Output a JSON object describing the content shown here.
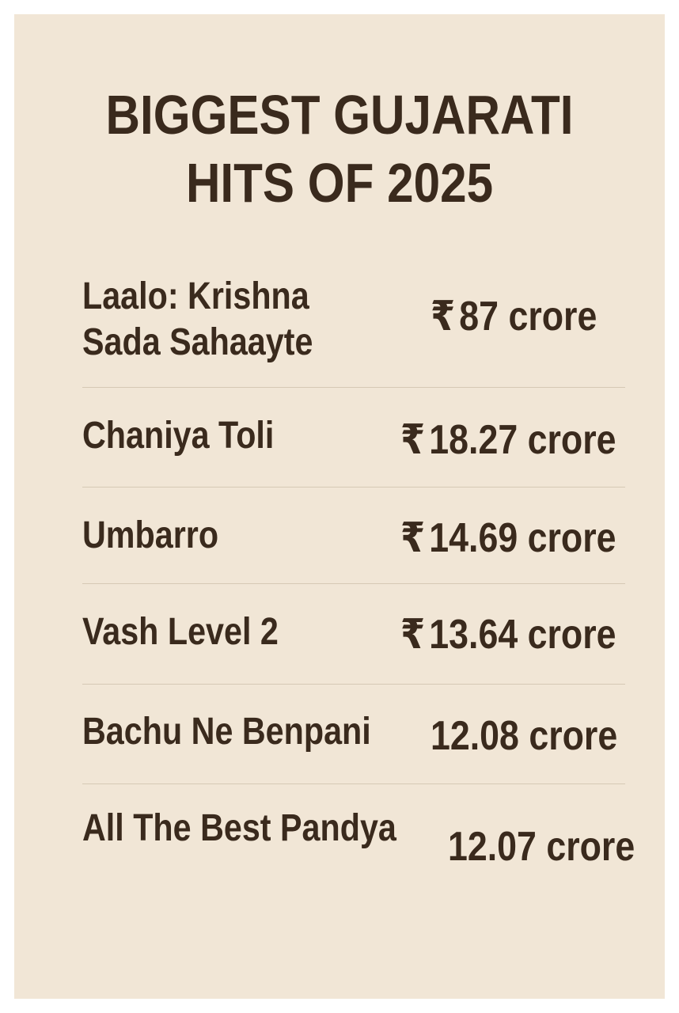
{
  "title": {
    "line1": "BIGGEST GUJARATI",
    "line2": "HITS OF 2025"
  },
  "films": [
    {
      "name_line1": "Laalo: Krishna",
      "name_line2": "Sada Sahaayte",
      "currency": "₹",
      "amount": "87 crore"
    },
    {
      "name_line1": "Chaniya Toli",
      "currency": "₹",
      "amount": "18.27 crore"
    },
    {
      "name_line1": "Umbarro",
      "currency": "₹",
      "amount": "14.69 crore"
    },
    {
      "name_line1": "Vash Level 2",
      "currency": "₹",
      "amount": "13.64 crore"
    },
    {
      "name_line1": "Bachu Ne Benpani",
      "amount": "12.08 crore"
    },
    {
      "name_line1": "All The Best Pandya",
      "amount": "12.07 crore"
    }
  ],
  "colors": {
    "background": "#f1e6d6",
    "text": "#3a2a1d",
    "divider": "#d6c9b5"
  }
}
